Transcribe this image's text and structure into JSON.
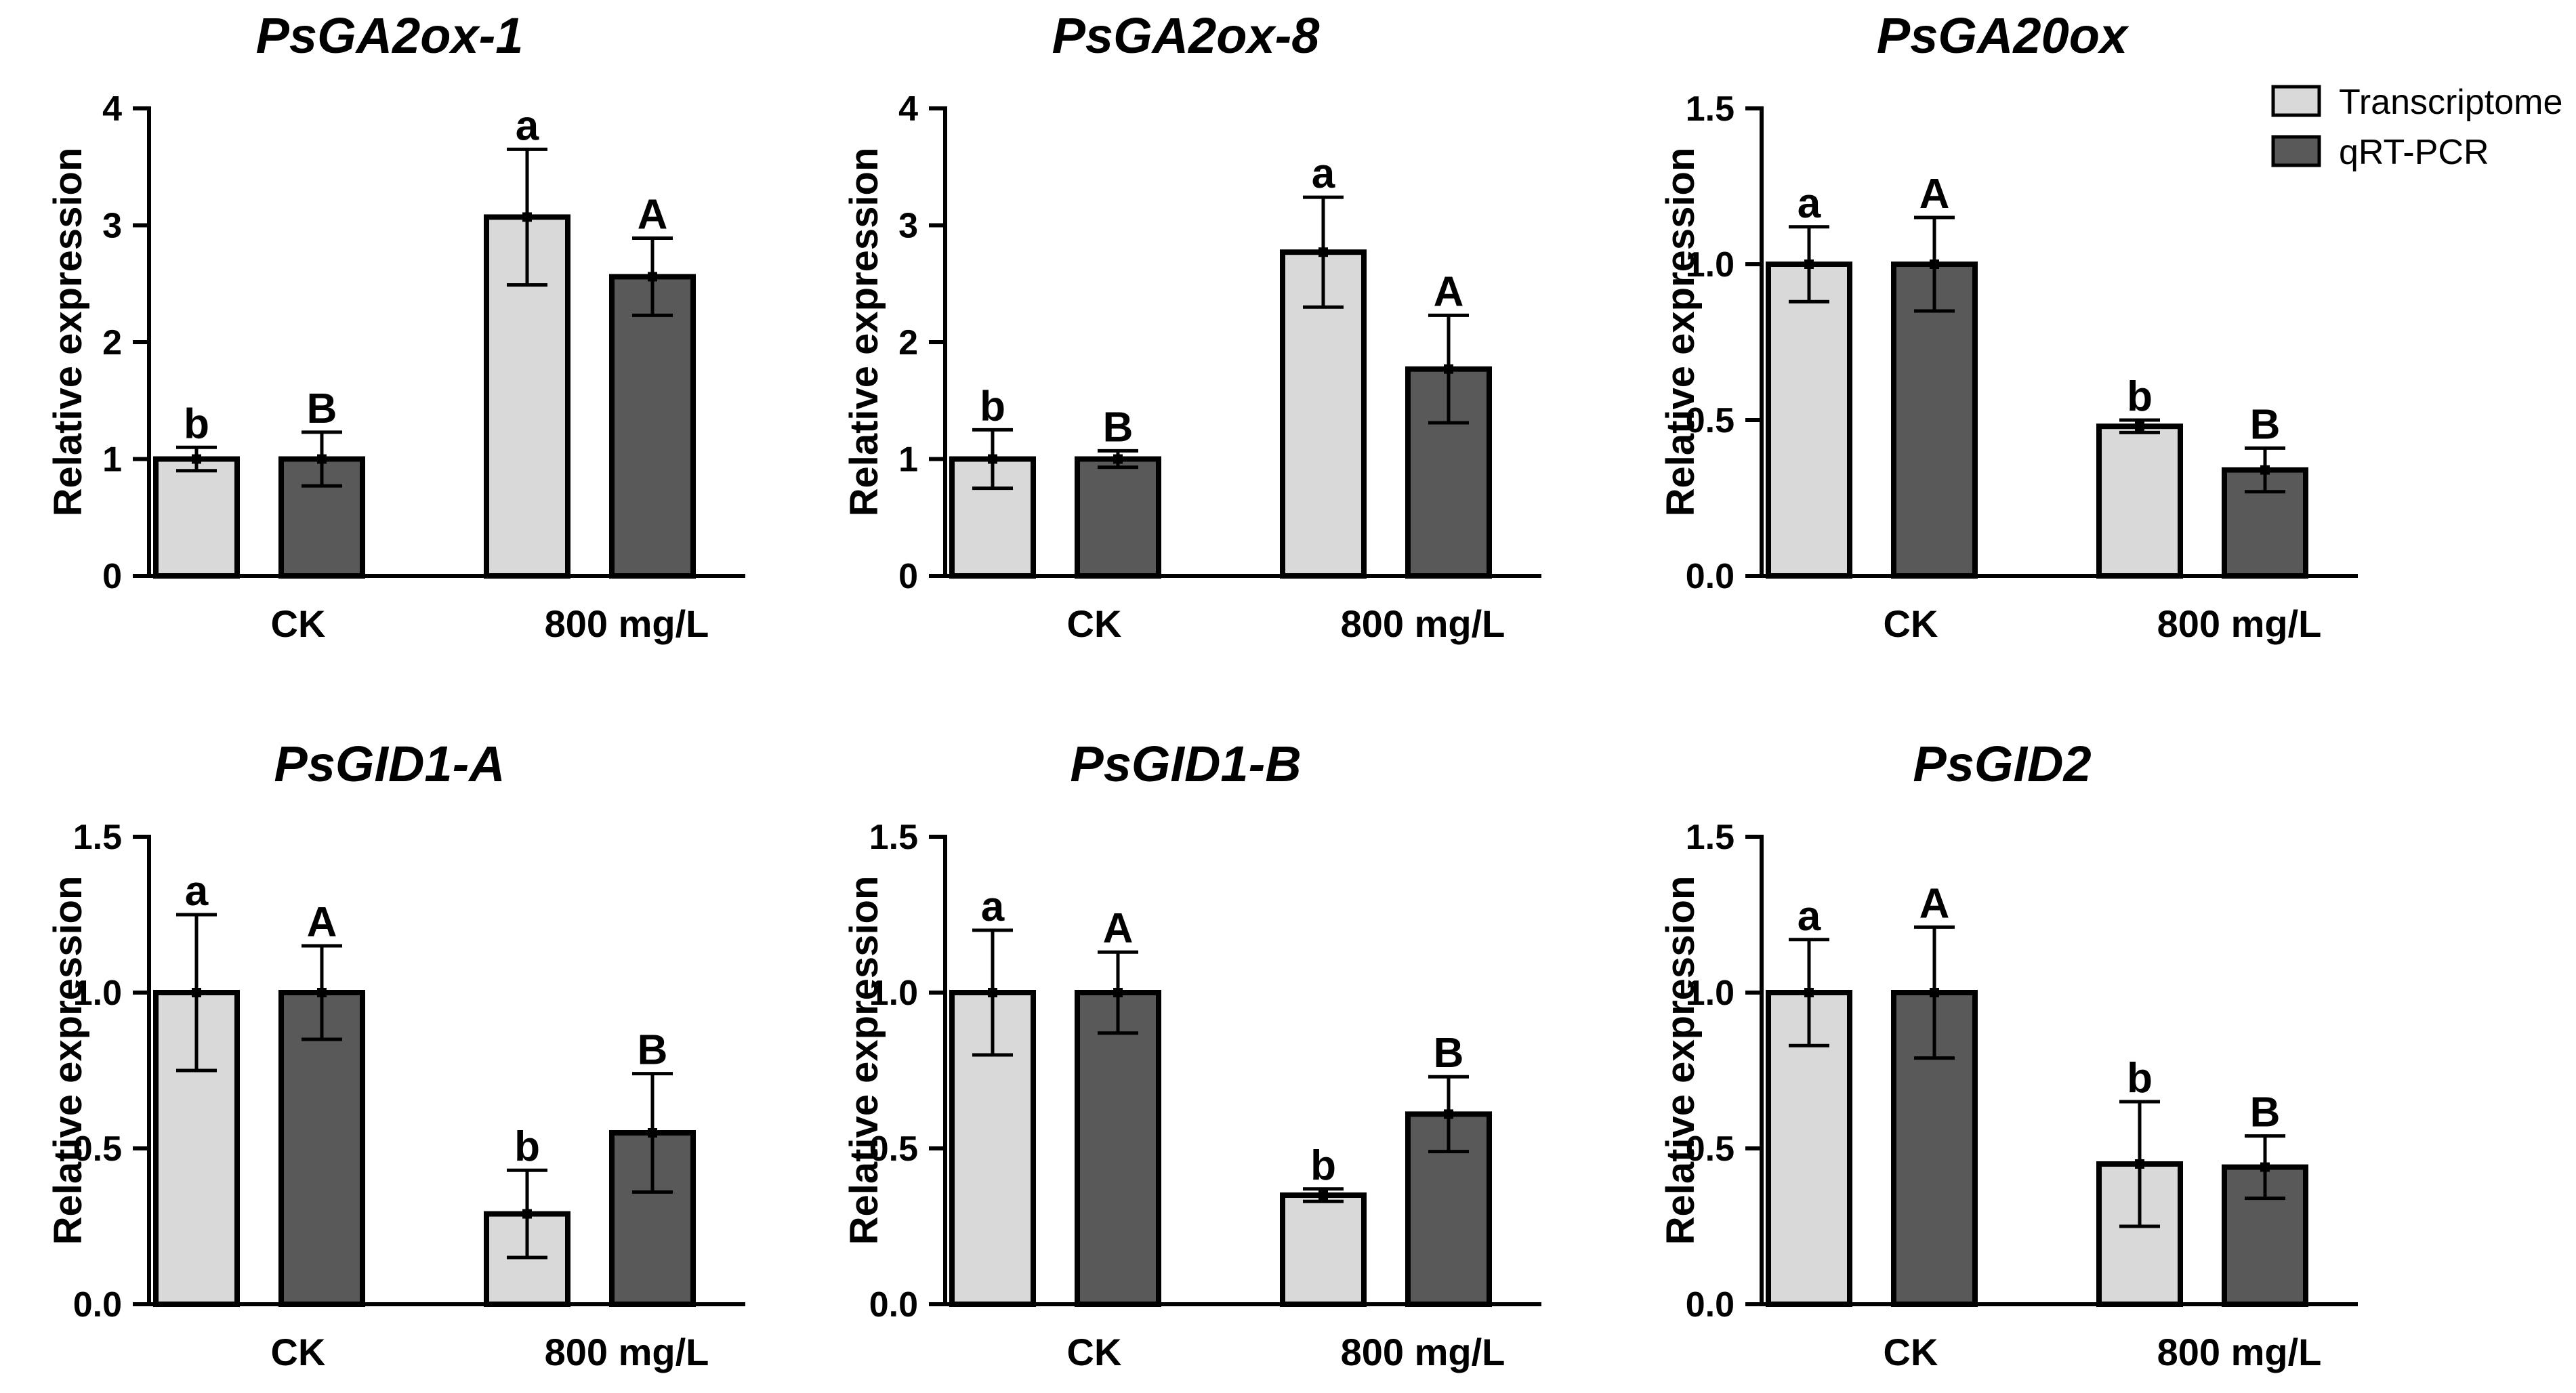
{
  "figure_ylabel": "Relative expression",
  "colors": {
    "transcriptome": "#d9d9d9",
    "qrtpcr": "#595959"
  },
  "legend": {
    "items": [
      "Transcriptome",
      "qRT-PCR"
    ],
    "placement": "top-right"
  },
  "chart_data": [
    {
      "type": "bar",
      "title": "PsGA2ox-1",
      "ylabel": "Relative expression",
      "categories": [
        "CK",
        "800 mg/L"
      ],
      "ylim": [
        0,
        4
      ],
      "ticks": [
        "0",
        "1",
        "2",
        "3",
        "4"
      ],
      "series": [
        {
          "name": "Transcriptome",
          "values": [
            1.0,
            3.07
          ],
          "errors": [
            0.1,
            0.58
          ],
          "letters": [
            "b",
            "a"
          ]
        },
        {
          "name": "qRT-PCR",
          "values": [
            1.0,
            2.56
          ],
          "errors": [
            0.23,
            0.33
          ],
          "letters": [
            "B",
            "A"
          ]
        }
      ]
    },
    {
      "type": "bar",
      "title": "PsGA2ox-8",
      "ylabel": "Relative expression",
      "categories": [
        "CK",
        "800 mg/L"
      ],
      "ylim": [
        0,
        4
      ],
      "ticks": [
        "0",
        "1",
        "2",
        "3",
        "4"
      ],
      "series": [
        {
          "name": "Transcriptome",
          "values": [
            1.0,
            2.77
          ],
          "errors": [
            0.25,
            0.47
          ],
          "letters": [
            "b",
            "a"
          ]
        },
        {
          "name": "qRT-PCR",
          "values": [
            1.0,
            1.77
          ],
          "errors": [
            0.07,
            0.46
          ],
          "letters": [
            "B",
            "A"
          ]
        }
      ]
    },
    {
      "type": "bar",
      "title": "PsGA20ox",
      "ylabel": "Relative expression",
      "categories": [
        "CK",
        "800 mg/L"
      ],
      "ylim": [
        0,
        1.5
      ],
      "ticks": [
        "0.0",
        "0.5",
        "1.0",
        "1.5"
      ],
      "series": [
        {
          "name": "Transcriptome",
          "values": [
            1.0,
            0.48
          ],
          "errors": [
            0.12,
            0.02
          ],
          "letters": [
            "a",
            "b"
          ]
        },
        {
          "name": "qRT-PCR",
          "values": [
            1.0,
            0.34
          ],
          "errors": [
            0.15,
            0.07
          ],
          "letters": [
            "A",
            "B"
          ]
        }
      ]
    },
    {
      "type": "bar",
      "title": "PsGID1-A",
      "ylabel": "Relative expression",
      "categories": [
        "CK",
        "800 mg/L"
      ],
      "ylim": [
        0,
        1.5
      ],
      "ticks": [
        "0.0",
        "0.5",
        "1.0",
        "1.5"
      ],
      "series": [
        {
          "name": "Transcriptome",
          "values": [
            1.0,
            0.29
          ],
          "errors": [
            0.25,
            0.14
          ],
          "letters": [
            "a",
            "b"
          ]
        },
        {
          "name": "qRT-PCR",
          "values": [
            1.0,
            0.55
          ],
          "errors": [
            0.15,
            0.19
          ],
          "letters": [
            "A",
            "B"
          ]
        }
      ]
    },
    {
      "type": "bar",
      "title": "PsGID1-B",
      "ylabel": "Relative expression",
      "categories": [
        "CK",
        "800 mg/L"
      ],
      "ylim": [
        0,
        1.5
      ],
      "ticks": [
        "0.0",
        "0.5",
        "1.0",
        "1.5"
      ],
      "series": [
        {
          "name": "Transcriptome",
          "values": [
            1.0,
            0.35
          ],
          "errors": [
            0.2,
            0.02
          ],
          "letters": [
            "a",
            "b"
          ]
        },
        {
          "name": "qRT-PCR",
          "values": [
            1.0,
            0.61
          ],
          "errors": [
            0.13,
            0.12
          ],
          "letters": [
            "A",
            "B"
          ]
        }
      ]
    },
    {
      "type": "bar",
      "title": "PsGID2",
      "ylabel": "Relative expression",
      "categories": [
        "CK",
        "800 mg/L"
      ],
      "ylim": [
        0,
        1.5
      ],
      "ticks": [
        "0.0",
        "0.5",
        "1.0",
        "1.5"
      ],
      "series": [
        {
          "name": "Transcriptome",
          "values": [
            1.0,
            0.45
          ],
          "errors": [
            0.17,
            0.2
          ],
          "letters": [
            "a",
            "b"
          ]
        },
        {
          "name": "qRT-PCR",
          "values": [
            1.0,
            0.44
          ],
          "errors": [
            0.21,
            0.1
          ],
          "letters": [
            "A",
            "B"
          ]
        }
      ]
    }
  ]
}
